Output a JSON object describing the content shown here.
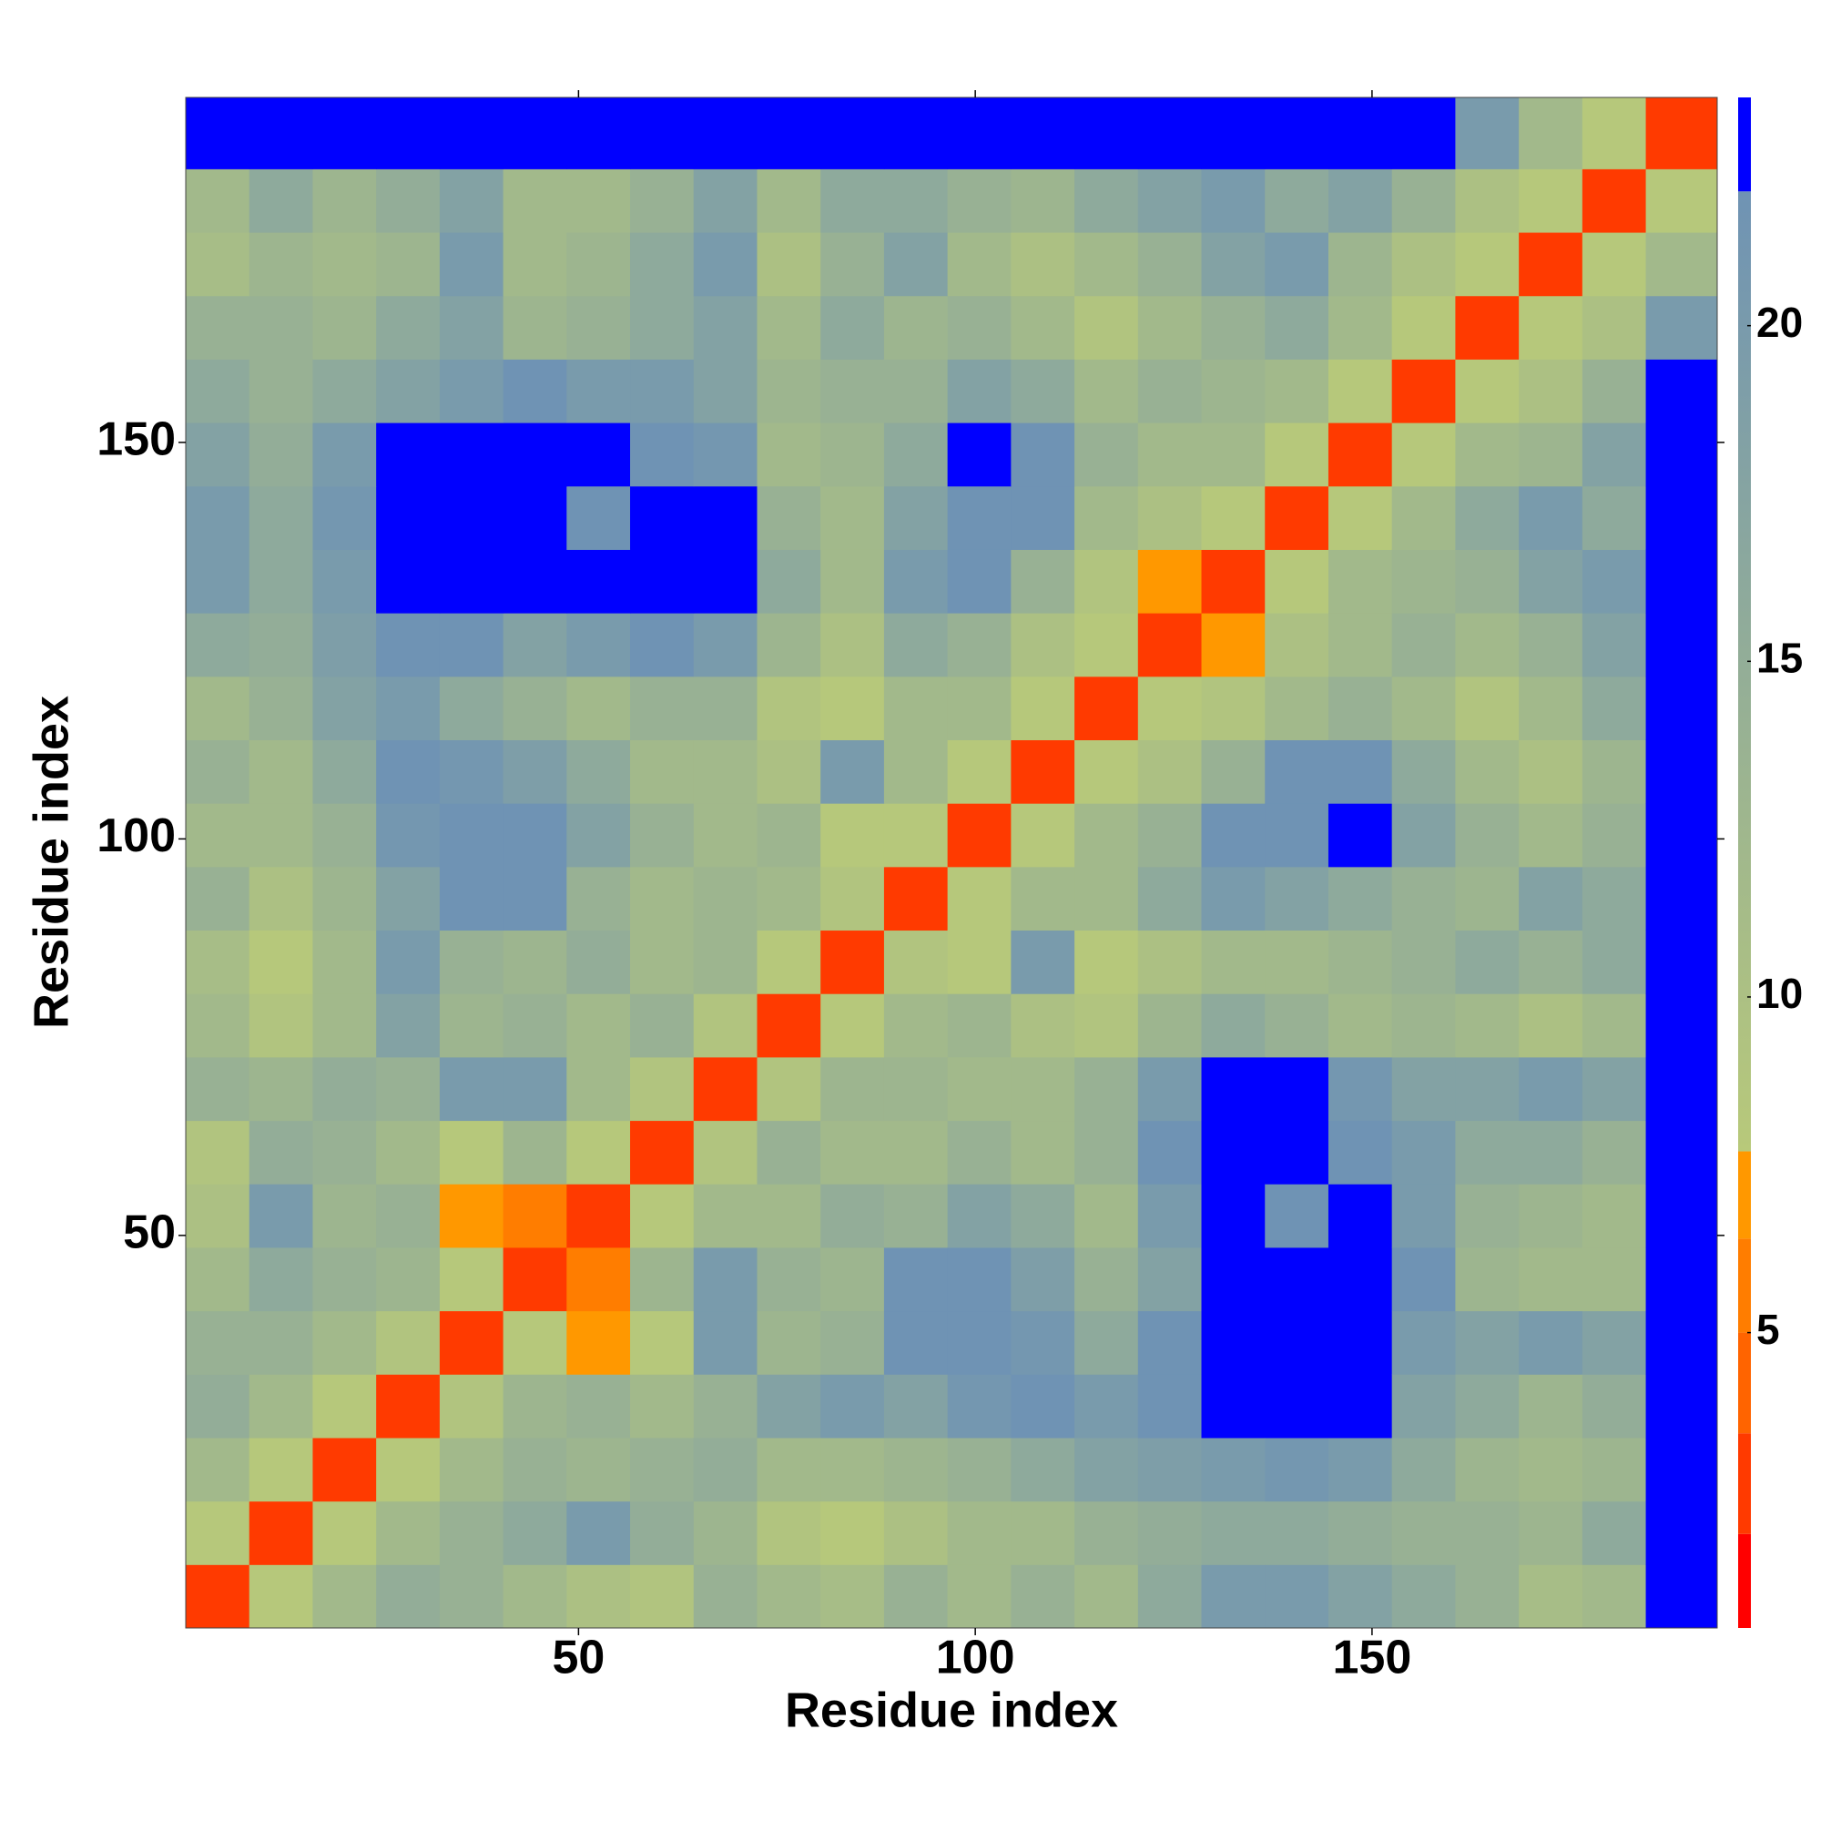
{
  "chart_data": {
    "type": "heatmap",
    "xlabel": "Residue index",
    "ylabel": "Residue index",
    "xlim": [
      0.5,
      193.5
    ],
    "ylim": [
      0.5,
      193.5
    ],
    "xticks": [
      50,
      100,
      150
    ],
    "yticks": [
      50,
      100,
      150
    ],
    "grid": false,
    "symmetric": true,
    "edges": [
      0.5,
      8.5,
      16.5,
      24.5,
      32.5,
      40.5,
      48.5,
      56.5,
      64.5,
      72.5,
      80.5,
      88.5,
      96.5,
      104.5,
      112.5,
      120.5,
      128.5,
      136.5,
      144.5,
      152.5,
      160.5,
      168.5,
      176.5,
      184.5,
      193.5
    ],
    "values": [
      [
        3
      ],
      [
        8,
        3
      ],
      [
        12,
        8,
        3
      ],
      [
        15,
        12,
        8,
        3
      ],
      [
        14,
        14,
        12,
        9,
        3
      ],
      [
        12,
        16,
        14,
        13,
        8,
        3
      ],
      [
        10,
        20,
        13,
        14,
        7,
        6,
        3
      ],
      [
        9,
        15,
        14,
        12,
        8,
        13,
        8,
        3
      ],
      [
        14,
        13,
        15,
        14,
        20,
        20,
        12,
        9,
        3
      ],
      [
        12,
        9,
        12,
        18,
        13,
        14,
        12,
        14,
        9,
        3
      ],
      [
        11,
        8,
        12,
        20,
        14,
        13,
        15,
        12,
        13,
        8,
        3
      ],
      [
        14,
        10,
        13,
        18,
        22,
        22,
        14,
        12,
        13,
        12,
        9,
        3
      ],
      [
        12,
        12,
        14,
        21,
        22,
        22,
        18,
        14,
        12,
        13,
        8,
        8,
        3
      ],
      [
        14,
        12,
        16,
        22,
        21,
        19,
        16,
        12,
        12,
        10,
        20,
        12,
        8,
        3
      ],
      [
        12,
        14,
        18,
        20,
        16,
        14,
        12,
        14,
        14,
        9,
        8,
        12,
        12,
        8,
        3
      ],
      [
        16,
        15,
        19,
        22,
        22,
        18,
        20,
        22,
        20,
        13,
        10,
        16,
        14,
        10,
        8,
        3
      ],
      [
        20,
        16,
        20,
        23,
        23,
        23,
        23,
        23,
        23,
        16,
        12,
        20,
        22,
        14,
        9,
        7,
        3
      ],
      [
        20,
        16,
        21,
        23,
        23,
        23,
        22,
        23,
        23,
        14,
        12,
        18,
        22,
        22,
        12,
        10,
        8,
        3
      ],
      [
        18,
        15,
        20,
        23,
        23,
        23,
        23,
        22,
        21,
        12,
        13,
        16,
        23,
        22,
        14,
        12,
        12,
        8,
        3
      ],
      [
        16,
        14,
        16,
        18,
        20,
        22,
        20,
        20,
        18,
        13,
        14,
        14,
        18,
        16,
        12,
        14,
        13,
        12,
        8,
        3
      ],
      [
        14,
        14,
        13,
        16,
        18,
        13,
        14,
        16,
        18,
        12,
        16,
        13,
        14,
        12,
        9,
        12,
        14,
        16,
        12,
        8,
        3
      ],
      [
        11,
        13,
        12,
        13,
        20,
        12,
        13,
        16,
        20,
        10,
        14,
        18,
        12,
        10,
        12,
        14,
        18,
        20,
        13,
        10,
        8,
        3
      ],
      [
        12,
        16,
        13,
        15,
        18,
        12,
        12,
        14,
        18,
        12,
        16,
        16,
        14,
        13,
        16,
        18,
        20,
        16,
        18,
        14,
        10,
        8,
        3
      ],
      [
        23,
        23,
        23,
        23,
        23,
        23,
        23,
        23,
        23,
        23,
        23,
        23,
        23,
        23,
        23,
        23,
        23,
        23,
        23,
        23,
        20,
        12,
        8,
        3
      ]
    ],
    "clim": [
      0.6,
      23.4
    ],
    "cticks": [
      5,
      10,
      15,
      20
    ],
    "colorbar": [
      {
        "from": 0.6,
        "to": 2,
        "color": "#ff0000"
      },
      {
        "from": 2,
        "to": 3.5,
        "color": "#ff3a00"
      },
      {
        "from": 3.5,
        "to": 5,
        "color": "#ff6400"
      },
      {
        "from": 5,
        "to": 6.4,
        "color": "#ff7d00"
      },
      {
        "from": 6.4,
        "to": 7.7,
        "color": "#ff9800"
      },
      {
        "from": 7.7,
        "to": 22,
        "color": [
          "#b8c97a",
          "#6f93b4"
        ]
      },
      {
        "from": 22,
        "to": 23.4,
        "color": "#0000ff"
      }
    ]
  }
}
